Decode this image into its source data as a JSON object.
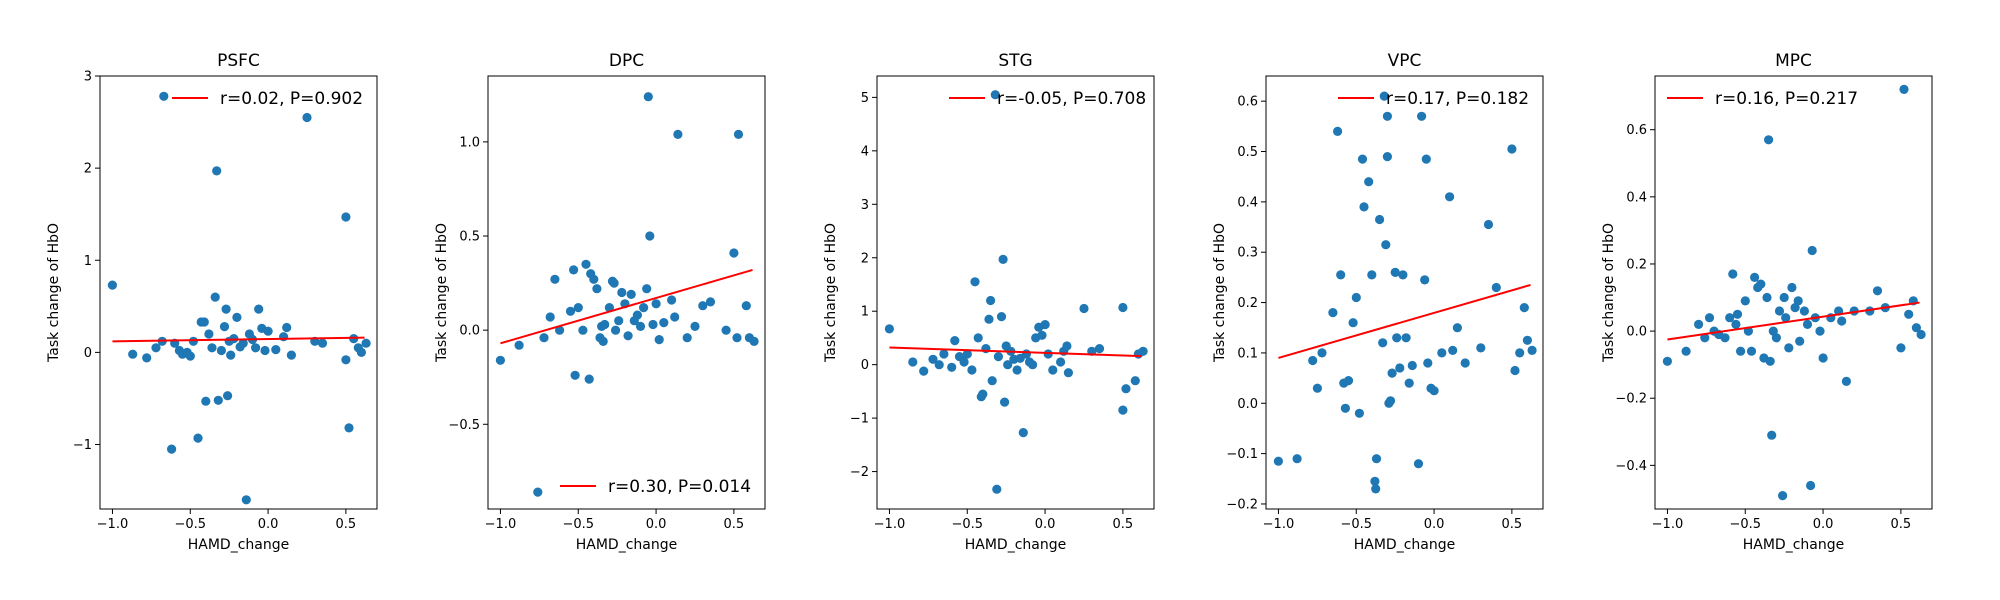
{
  "colors": {
    "points": "#1f77b4",
    "fit_line": "#ff0000",
    "axes": "#000000"
  },
  "chart_data": [
    {
      "type": "scatter",
      "title": "PSFC",
      "xlabel": "HAMD_change",
      "ylabel": "Task change of HbO",
      "xlim": [
        -1.08,
        0.7
      ],
      "ylim": [
        -1.7,
        3.0
      ],
      "xticks": [
        -1.0,
        -0.5,
        0.0,
        0.5
      ],
      "xtick_labels": [
        "−1.0",
        "−0.5",
        "0.0",
        "0.5"
      ],
      "yticks": [
        -1,
        0,
        1,
        2,
        3
      ],
      "ytick_labels": [
        "−1",
        "0",
        "1",
        "2",
        "3"
      ],
      "legend": {
        "text": "r=0.02, P=0.902",
        "position": "top-right"
      },
      "fit": {
        "x": [
          -1.0,
          0.62
        ],
        "y": [
          0.12,
          0.16
        ]
      },
      "points": [
        [
          -1.0,
          0.73
        ],
        [
          -0.87,
          -0.02
        ],
        [
          -0.78,
          -0.06
        ],
        [
          -0.72,
          0.05
        ],
        [
          -0.68,
          0.12
        ],
        [
          -0.67,
          2.78
        ],
        [
          -0.62,
          -1.05
        ],
        [
          -0.6,
          0.1
        ],
        [
          -0.57,
          0.02
        ],
        [
          -0.55,
          -0.02
        ],
        [
          -0.52,
          0.0
        ],
        [
          -0.5,
          -0.04
        ],
        [
          -0.48,
          0.12
        ],
        [
          -0.45,
          -0.93
        ],
        [
          -0.43,
          0.33
        ],
        [
          -0.41,
          0.33
        ],
        [
          -0.4,
          -0.53
        ],
        [
          -0.38,
          0.2
        ],
        [
          -0.36,
          0.05
        ],
        [
          -0.34,
          0.6
        ],
        [
          -0.33,
          1.97
        ],
        [
          -0.32,
          -0.52
        ],
        [
          -0.3,
          0.02
        ],
        [
          -0.28,
          0.28
        ],
        [
          -0.27,
          0.47
        ],
        [
          -0.26,
          -0.47
        ],
        [
          -0.25,
          0.12
        ],
        [
          -0.24,
          -0.03
        ],
        [
          -0.22,
          0.15
        ],
        [
          -0.2,
          0.38
        ],
        [
          -0.18,
          0.06
        ],
        [
          -0.16,
          0.1
        ],
        [
          -0.14,
          -1.6
        ],
        [
          -0.12,
          0.2
        ],
        [
          -0.1,
          0.14
        ],
        [
          -0.08,
          0.05
        ],
        [
          -0.06,
          0.47
        ],
        [
          -0.04,
          0.26
        ],
        [
          -0.02,
          0.02
        ],
        [
          0.0,
          0.23
        ],
        [
          0.05,
          0.03
        ],
        [
          0.1,
          0.17
        ],
        [
          0.12,
          0.27
        ],
        [
          0.15,
          -0.03
        ],
        [
          0.25,
          2.55
        ],
        [
          0.3,
          0.12
        ],
        [
          0.35,
          0.1
        ],
        [
          0.5,
          1.47
        ],
        [
          0.5,
          -0.08
        ],
        [
          0.52,
          -0.82
        ],
        [
          0.55,
          0.15
        ],
        [
          0.58,
          0.05
        ],
        [
          0.6,
          0.0
        ],
        [
          0.63,
          0.1
        ]
      ]
    },
    {
      "type": "scatter",
      "title": "DPC",
      "xlabel": "HAMD_change",
      "ylabel": "Task change of HbO",
      "xlim": [
        -1.08,
        0.7
      ],
      "ylim": [
        -0.95,
        1.35
      ],
      "xticks": [
        -1.0,
        -0.5,
        0.0,
        0.5
      ],
      "xtick_labels": [
        "−1.0",
        "−0.5",
        "0.0",
        "0.5"
      ],
      "yticks": [
        -0.5,
        0.0,
        0.5,
        1.0
      ],
      "ytick_labels": [
        "−0.5",
        "0.0",
        "0.5",
        "1.0"
      ],
      "legend": {
        "text": "r=0.30, P=0.014",
        "position": "bottom-right"
      },
      "fit": {
        "x": [
          -1.0,
          0.62
        ],
        "y": [
          -0.07,
          0.32
        ]
      },
      "points": [
        [
          -1.0,
          -0.16
        ],
        [
          -0.88,
          -0.08
        ],
        [
          -0.76,
          -0.86
        ],
        [
          -0.72,
          -0.04
        ],
        [
          -0.68,
          0.07
        ],
        [
          -0.65,
          0.27
        ],
        [
          -0.62,
          0.0
        ],
        [
          -0.55,
          0.1
        ],
        [
          -0.53,
          0.32
        ],
        [
          -0.52,
          -0.24
        ],
        [
          -0.5,
          0.12
        ],
        [
          -0.47,
          0.0
        ],
        [
          -0.45,
          0.35
        ],
        [
          -0.43,
          -0.26
        ],
        [
          -0.42,
          0.3
        ],
        [
          -0.4,
          0.27
        ],
        [
          -0.38,
          0.22
        ],
        [
          -0.36,
          -0.04
        ],
        [
          -0.35,
          0.02
        ],
        [
          -0.34,
          -0.06
        ],
        [
          -0.33,
          0.03
        ],
        [
          -0.3,
          0.12
        ],
        [
          -0.28,
          0.26
        ],
        [
          -0.27,
          0.25
        ],
        [
          -0.26,
          0.0
        ],
        [
          -0.24,
          0.05
        ],
        [
          -0.22,
          0.2
        ],
        [
          -0.2,
          0.14
        ],
        [
          -0.18,
          -0.03
        ],
        [
          -0.16,
          0.19
        ],
        [
          -0.14,
          0.05
        ],
        [
          -0.12,
          0.08
        ],
        [
          -0.1,
          0.02
        ],
        [
          -0.08,
          0.12
        ],
        [
          -0.06,
          0.22
        ],
        [
          -0.05,
          1.24
        ],
        [
          -0.04,
          0.5
        ],
        [
          -0.02,
          0.03
        ],
        [
          0.0,
          0.14
        ],
        [
          0.02,
          -0.05
        ],
        [
          0.05,
          0.04
        ],
        [
          0.1,
          0.16
        ],
        [
          0.12,
          0.07
        ],
        [
          0.14,
          1.04
        ],
        [
          0.2,
          -0.04
        ],
        [
          0.25,
          0.02
        ],
        [
          0.3,
          0.13
        ],
        [
          0.35,
          0.15
        ],
        [
          0.45,
          0.0
        ],
        [
          0.5,
          0.41
        ],
        [
          0.52,
          -0.04
        ],
        [
          0.53,
          1.04
        ],
        [
          0.58,
          0.13
        ],
        [
          0.6,
          -0.04
        ],
        [
          0.63,
          -0.06
        ]
      ]
    },
    {
      "type": "scatter",
      "title": "STG",
      "xlabel": "HAMD_change",
      "ylabel": "Task change of HbO",
      "xlim": [
        -1.08,
        0.7
      ],
      "ylim": [
        -2.7,
        5.4
      ],
      "xticks": [
        -1.0,
        -0.5,
        0.0,
        0.5
      ],
      "xtick_labels": [
        "−1.0",
        "−0.5",
        "0.0",
        "0.5"
      ],
      "yticks": [
        -2,
        -1,
        0,
        1,
        2,
        3,
        4,
        5
      ],
      "ytick_labels": [
        "−2",
        "−1",
        "0",
        "1",
        "2",
        "3",
        "4",
        "5"
      ],
      "legend": {
        "text": "r=-0.05, P=0.708",
        "position": "top-right"
      },
      "fit": {
        "x": [
          -1.0,
          0.62
        ],
        "y": [
          0.32,
          0.16
        ]
      },
      "points": [
        [
          -1.0,
          0.67
        ],
        [
          -0.85,
          0.05
        ],
        [
          -0.78,
          -0.12
        ],
        [
          -0.72,
          0.1
        ],
        [
          -0.68,
          0.0
        ],
        [
          -0.65,
          0.2
        ],
        [
          -0.6,
          -0.05
        ],
        [
          -0.58,
          0.45
        ],
        [
          -0.55,
          0.15
        ],
        [
          -0.52,
          0.05
        ],
        [
          -0.5,
          0.2
        ],
        [
          -0.47,
          -0.1
        ],
        [
          -0.45,
          1.55
        ],
        [
          -0.43,
          0.5
        ],
        [
          -0.41,
          -0.6
        ],
        [
          -0.4,
          -0.55
        ],
        [
          -0.38,
          0.3
        ],
        [
          -0.36,
          0.85
        ],
        [
          -0.35,
          1.2
        ],
        [
          -0.34,
          -0.3
        ],
        [
          -0.32,
          5.05
        ],
        [
          -0.31,
          -2.33
        ],
        [
          -0.3,
          0.15
        ],
        [
          -0.28,
          0.9
        ],
        [
          -0.27,
          1.97
        ],
        [
          -0.26,
          -0.7
        ],
        [
          -0.25,
          0.35
        ],
        [
          -0.24,
          0.0
        ],
        [
          -0.22,
          0.25
        ],
        [
          -0.2,
          0.1
        ],
        [
          -0.18,
          -0.1
        ],
        [
          -0.16,
          0.12
        ],
        [
          -0.14,
          -1.27
        ],
        [
          -0.12,
          0.2
        ],
        [
          -0.1,
          0.05
        ],
        [
          -0.08,
          0.0
        ],
        [
          -0.06,
          0.5
        ],
        [
          -0.04,
          0.7
        ],
        [
          -0.02,
          0.55
        ],
        [
          0.0,
          0.75
        ],
        [
          0.02,
          0.2
        ],
        [
          0.05,
          -0.1
        ],
        [
          0.1,
          0.05
        ],
        [
          0.12,
          0.25
        ],
        [
          0.14,
          0.35
        ],
        [
          0.15,
          -0.15
        ],
        [
          0.25,
          1.05
        ],
        [
          0.3,
          0.25
        ],
        [
          0.35,
          0.3
        ],
        [
          0.5,
          1.07
        ],
        [
          0.5,
          -0.85
        ],
        [
          0.52,
          -0.45
        ],
        [
          0.58,
          -0.3
        ],
        [
          0.6,
          0.2
        ],
        [
          0.63,
          0.25
        ]
      ]
    },
    {
      "type": "scatter",
      "title": "VPC",
      "xlabel": "HAMD_change",
      "ylabel": "Task change of HbO",
      "xlim": [
        -1.08,
        0.7
      ],
      "ylim": [
        -0.21,
        0.65
      ],
      "xticks": [
        -1.0,
        -0.5,
        0.0,
        0.5
      ],
      "xtick_labels": [
        "−1.0",
        "−0.5",
        "0.0",
        "0.5"
      ],
      "yticks": [
        -0.2,
        -0.1,
        0.0,
        0.1,
        0.2,
        0.3,
        0.4,
        0.5,
        0.6
      ],
      "ytick_labels": [
        "−0.2",
        "−0.1",
        "0.0",
        "0.1",
        "0.2",
        "0.3",
        "0.4",
        "0.5",
        "0.6"
      ],
      "legend": {
        "text": "r=0.17, P=0.182",
        "position": "top-right"
      },
      "fit": {
        "x": [
          -1.0,
          0.62
        ],
        "y": [
          0.09,
          0.235
        ]
      },
      "points": [
        [
          -1.0,
          -0.115
        ],
        [
          -0.88,
          -0.11
        ],
        [
          -0.78,
          0.085
        ],
        [
          -0.75,
          0.03
        ],
        [
          -0.72,
          0.1
        ],
        [
          -0.65,
          0.18
        ],
        [
          -0.62,
          0.54
        ],
        [
          -0.6,
          0.255
        ],
        [
          -0.58,
          0.04
        ],
        [
          -0.57,
          -0.01
        ],
        [
          -0.55,
          0.045
        ],
        [
          -0.52,
          0.16
        ],
        [
          -0.5,
          0.21
        ],
        [
          -0.48,
          -0.02
        ],
        [
          -0.46,
          0.485
        ],
        [
          -0.45,
          0.39
        ],
        [
          -0.42,
          0.44
        ],
        [
          -0.4,
          0.255
        ],
        [
          -0.38,
          -0.155
        ],
        [
          -0.375,
          -0.17
        ],
        [
          -0.37,
          -0.11
        ],
        [
          -0.35,
          0.365
        ],
        [
          -0.33,
          0.12
        ],
        [
          -0.32,
          0.61
        ],
        [
          -0.31,
          0.315
        ],
        [
          -0.3,
          0.49
        ],
        [
          -0.3,
          0.57
        ],
        [
          -0.29,
          0.0
        ],
        [
          -0.28,
          0.005
        ],
        [
          -0.27,
          0.06
        ],
        [
          -0.25,
          0.26
        ],
        [
          -0.24,
          0.13
        ],
        [
          -0.22,
          0.07
        ],
        [
          -0.2,
          0.255
        ],
        [
          -0.18,
          0.13
        ],
        [
          -0.16,
          0.04
        ],
        [
          -0.14,
          0.075
        ],
        [
          -0.1,
          -0.12
        ],
        [
          -0.08,
          0.57
        ],
        [
          -0.06,
          0.245
        ],
        [
          -0.05,
          0.485
        ],
        [
          -0.04,
          0.08
        ],
        [
          -0.02,
          0.03
        ],
        [
          0.0,
          0.025
        ],
        [
          0.05,
          0.1
        ],
        [
          0.1,
          0.41
        ],
        [
          0.12,
          0.105
        ],
        [
          0.15,
          0.15
        ],
        [
          0.2,
          0.08
        ],
        [
          0.3,
          0.11
        ],
        [
          0.35,
          0.355
        ],
        [
          0.4,
          0.23
        ],
        [
          0.5,
          0.505
        ],
        [
          0.52,
          0.065
        ],
        [
          0.55,
          0.1
        ],
        [
          0.58,
          0.19
        ],
        [
          0.6,
          0.125
        ],
        [
          0.63,
          0.105
        ]
      ]
    },
    {
      "type": "scatter",
      "title": "MPC",
      "xlabel": "HAMD_change",
      "ylabel": "Task change of HbO",
      "xlim": [
        -1.08,
        0.7
      ],
      "ylim": [
        -0.53,
        0.76
      ],
      "xticks": [
        -1.0,
        -0.5,
        0.0,
        0.5
      ],
      "xtick_labels": [
        "−1.0",
        "−0.5",
        "0.0",
        "0.5"
      ],
      "yticks": [
        -0.4,
        -0.2,
        0.0,
        0.2,
        0.4,
        0.6
      ],
      "ytick_labels": [
        "−0.4",
        "−0.2",
        "0.0",
        "0.2",
        "0.4",
        "0.6"
      ],
      "legend": {
        "text": "r=0.16, P=0.217",
        "position": "top-left"
      },
      "fit": {
        "x": [
          -1.0,
          0.62
        ],
        "y": [
          -0.025,
          0.085
        ]
      },
      "points": [
        [
          -1.0,
          -0.09
        ],
        [
          -0.88,
          -0.06
        ],
        [
          -0.8,
          0.02
        ],
        [
          -0.76,
          -0.02
        ],
        [
          -0.73,
          0.04
        ],
        [
          -0.7,
          0.0
        ],
        [
          -0.67,
          -0.01
        ],
        [
          -0.63,
          -0.02
        ],
        [
          -0.6,
          0.04
        ],
        [
          -0.58,
          0.17
        ],
        [
          -0.56,
          0.02
        ],
        [
          -0.55,
          0.05
        ],
        [
          -0.53,
          -0.06
        ],
        [
          -0.5,
          0.09
        ],
        [
          -0.48,
          0.0
        ],
        [
          -0.46,
          -0.06
        ],
        [
          -0.44,
          0.16
        ],
        [
          -0.42,
          0.13
        ],
        [
          -0.4,
          0.14
        ],
        [
          -0.38,
          -0.08
        ],
        [
          -0.36,
          0.1
        ],
        [
          -0.35,
          0.57
        ],
        [
          -0.34,
          -0.09
        ],
        [
          -0.33,
          -0.31
        ],
        [
          -0.32,
          0.0
        ],
        [
          -0.3,
          -0.02
        ],
        [
          -0.28,
          0.06
        ],
        [
          -0.26,
          -0.49
        ],
        [
          -0.25,
          0.1
        ],
        [
          -0.24,
          0.04
        ],
        [
          -0.22,
          -0.05
        ],
        [
          -0.2,
          0.13
        ],
        [
          -0.18,
          0.07
        ],
        [
          -0.16,
          0.09
        ],
        [
          -0.15,
          -0.03
        ],
        [
          -0.12,
          0.06
        ],
        [
          -0.1,
          0.02
        ],
        [
          -0.08,
          -0.46
        ],
        [
          -0.07,
          0.24
        ],
        [
          -0.05,
          0.04
        ],
        [
          -0.02,
          0.0
        ],
        [
          0.0,
          -0.08
        ],
        [
          0.05,
          0.04
        ],
        [
          0.1,
          0.06
        ],
        [
          0.12,
          0.03
        ],
        [
          0.15,
          -0.15
        ],
        [
          0.2,
          0.06
        ],
        [
          0.3,
          0.06
        ],
        [
          0.35,
          0.12
        ],
        [
          0.4,
          0.07
        ],
        [
          0.5,
          -0.05
        ],
        [
          0.52,
          0.72
        ],
        [
          0.55,
          0.05
        ],
        [
          0.58,
          0.09
        ],
        [
          0.6,
          0.01
        ],
        [
          0.63,
          -0.01
        ]
      ]
    }
  ]
}
